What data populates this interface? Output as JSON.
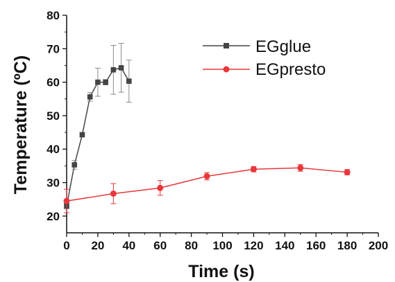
{
  "chart_data": {
    "type": "line",
    "xlabel": "Time (s)",
    "ylabel": "Temperature (ºC)",
    "xlim": [
      0,
      200
    ],
    "ylim": [
      15,
      80
    ],
    "x_ticks": [
      0,
      20,
      40,
      60,
      80,
      100,
      120,
      140,
      160,
      180,
      200
    ],
    "y_ticks": [
      20,
      30,
      40,
      50,
      60,
      70,
      80
    ],
    "grid": false,
    "legend_position": "top-right",
    "series": [
      {
        "name": "EGglue",
        "color": "#444444",
        "marker": "square",
        "x": [
          0,
          5,
          10,
          15,
          20,
          25,
          30,
          35,
          40
        ],
        "y": [
          23.0,
          35.3,
          44.3,
          55.6,
          60.0,
          60.0,
          63.7,
          64.3,
          60.3
        ],
        "error": [
          0.8,
          1.3,
          0.6,
          1.3,
          4.2,
          0.8,
          7.3,
          7.3,
          6.3
        ]
      },
      {
        "name": "EGpresto",
        "color": "#e8363a",
        "marker": "circle",
        "x": [
          0,
          30,
          60,
          90,
          120,
          150,
          180
        ],
        "y": [
          24.5,
          26.7,
          28.4,
          31.9,
          34.0,
          34.4,
          33.1
        ],
        "error": [
          3.5,
          3.0,
          2.2,
          1.1,
          0.8,
          1.0,
          0.8
        ]
      }
    ]
  }
}
